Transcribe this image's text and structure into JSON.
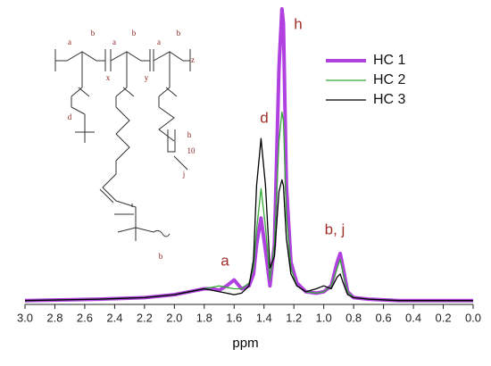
{
  "chart_data": {
    "type": "line",
    "x_label": "ppm",
    "xlim": [
      3.0,
      0.0
    ],
    "xticks": [
      {
        "value": 3.0,
        "label": "3.0"
      },
      2.8,
      2.6,
      2.4,
      2.2,
      {
        "value": 2.0,
        "label": "2.0"
      },
      1.8,
      1.6,
      1.4,
      1.2,
      {
        "value": 1.0,
        "label": "1.0"
      },
      0.8,
      0.6,
      0.4,
      0.2,
      {
        "value": 0.0,
        "label": "0.0"
      }
    ],
    "ylim": [
      0,
      100
    ],
    "x": [
      3.0,
      2.5,
      2.2,
      2.0,
      1.9,
      1.8,
      1.75,
      1.7,
      1.65,
      1.6,
      1.55,
      1.5,
      1.47,
      1.45,
      1.42,
      1.39,
      1.36,
      1.33,
      1.3,
      1.28,
      1.27,
      1.25,
      1.22,
      1.18,
      1.12,
      1.05,
      1.0,
      0.95,
      0.91,
      0.89,
      0.87,
      0.84,
      0.8,
      0.7,
      0.5,
      0.0
    ],
    "series": [
      {
        "name": "HC 1",
        "color": "#b040e0",
        "width": 4,
        "values": [
          1,
          1.5,
          2,
          3,
          4,
          5,
          5,
          4.5,
          6,
          8,
          5,
          6,
          10,
          20,
          29,
          18,
          6,
          20,
          80,
          100,
          95,
          40,
          14,
          7,
          4,
          3.5,
          4,
          6,
          14,
          17,
          12,
          4,
          2,
          1.5,
          1,
          1
        ]
      },
      {
        "name": "HC 2",
        "color": "#33aa33",
        "width": 1.3,
        "values": [
          1,
          1.5,
          2,
          3,
          4,
          5,
          5.5,
          6,
          5.5,
          5,
          5,
          7,
          12,
          25,
          39,
          26,
          8,
          20,
          55,
          65,
          62,
          30,
          12,
          6,
          4,
          3.5,
          4,
          6,
          12,
          15,
          10,
          4,
          2,
          1.5,
          1,
          1
        ]
      },
      {
        "name": "HC 3",
        "color": "#000000",
        "width": 1.3,
        "values": [
          1,
          1.5,
          2,
          3,
          4,
          5,
          4.5,
          4,
          3.5,
          3,
          3.5,
          6,
          15,
          40,
          56,
          40,
          12,
          16,
          38,
          42,
          40,
          22,
          10,
          6,
          4,
          5,
          6,
          5,
          9,
          10,
          7,
          3,
          2,
          1.5,
          1,
          1
        ]
      }
    ],
    "legend": "upper right",
    "annotations": [
      "a",
      "d",
      "h",
      "b, j"
    ],
    "structure_labels": [
      "a",
      "b",
      "a",
      "b",
      "a",
      "b",
      "x",
      "y",
      "z",
      "d",
      "h",
      "10",
      "j",
      "b"
    ]
  }
}
